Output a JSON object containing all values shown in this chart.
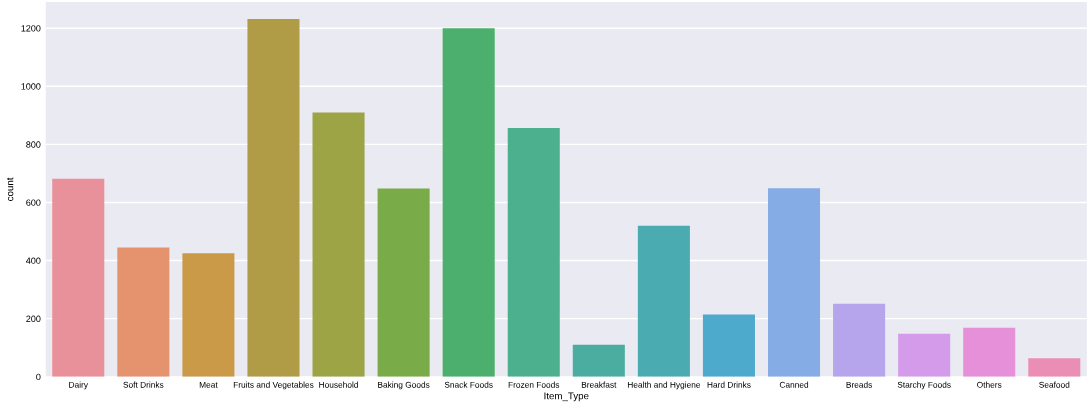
{
  "chart_data": {
    "type": "bar",
    "xlabel": "Item_Type",
    "ylabel": "count",
    "categories": [
      "Dairy",
      "Soft Drinks",
      "Meat",
      "Fruits and Vegetables",
      "Household",
      "Baking Goods",
      "Snack Foods",
      "Frozen Foods",
      "Breakfast",
      "Health and Hygiene",
      "Hard Drinks",
      "Canned",
      "Breads",
      "Starchy Foods",
      "Others",
      "Seafood"
    ],
    "values": [
      682,
      445,
      425,
      1232,
      910,
      648,
      1200,
      856,
      110,
      520,
      214,
      649,
      251,
      148,
      169,
      64
    ],
    "colors": [
      "#e9919a",
      "#e5936f",
      "#ca9a48",
      "#b09c46",
      "#9ca445",
      "#79ac48",
      "#4caf6d",
      "#4cb08f",
      "#4aad9f",
      "#4aacb0",
      "#4eaacd",
      "#85ace5",
      "#b6a5ec",
      "#d49bea",
      "#e690da",
      "#eb8eb6"
    ],
    "ylim": [
      0,
      1290
    ],
    "yticks": [
      0,
      200,
      400,
      600,
      800,
      1000,
      1200
    ],
    "grid": "y"
  }
}
